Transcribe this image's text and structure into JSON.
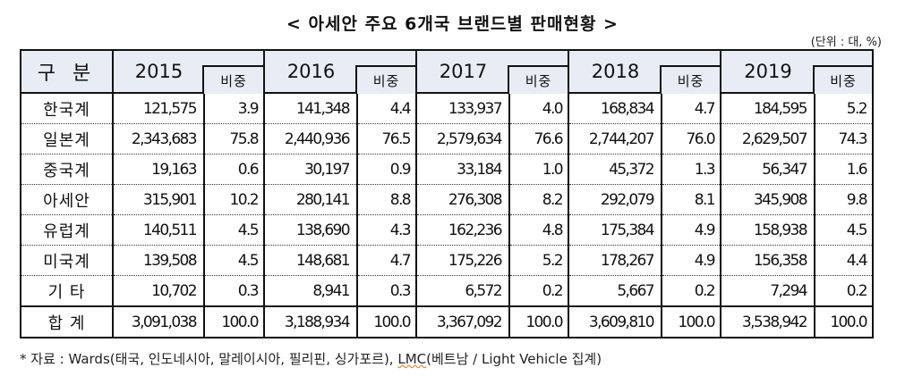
{
  "title": "< 아세안 주요 6개국 브랜드별 판매현황 >",
  "unit": "(단위 : 대, %)",
  "table": {
    "row_header": "구 분",
    "share_label": "비중",
    "years": [
      "2015",
      "2016",
      "2017",
      "2018",
      "2019"
    ],
    "rows": [
      {
        "label": "한국계",
        "values": [
          "121,575",
          "3.9",
          "141,348",
          "4.4",
          "133,937",
          "4.0",
          "168,834",
          "4.7",
          "184,595",
          "5.2"
        ]
      },
      {
        "label": "일본계",
        "values": [
          "2,343,683",
          "75.8",
          "2,440,936",
          "76.5",
          "2,579,634",
          "76.6",
          "2,744,207",
          "76.0",
          "2,629,507",
          "74.3"
        ]
      },
      {
        "label": "중국계",
        "values": [
          "19,163",
          "0.6",
          "30,197",
          "0.9",
          "33,184",
          "1.0",
          "45,372",
          "1.3",
          "56,347",
          "1.6"
        ]
      },
      {
        "label": "아세안",
        "values": [
          "315,901",
          "10.2",
          "280,141",
          "8.8",
          "276,308",
          "8.2",
          "292,079",
          "8.1",
          "345,908",
          "9.8"
        ]
      },
      {
        "label": "유럽계",
        "values": [
          "140,511",
          "4.5",
          "138,690",
          "4.3",
          "162,236",
          "4.8",
          "175,384",
          "4.9",
          "158,938",
          "4.5"
        ]
      },
      {
        "label": "미국계",
        "values": [
          "139,508",
          "4.5",
          "148,681",
          "4.7",
          "175,226",
          "5.2",
          "178,267",
          "4.9",
          "156,358",
          "4.4"
        ]
      },
      {
        "label": "기 타",
        "values": [
          "10,702",
          "0.3",
          "8,941",
          "0.3",
          "6,572",
          "0.2",
          "5,667",
          "0.2",
          "7,294",
          "0.2"
        ]
      },
      {
        "label": "합 계",
        "values": [
          "3,091,038",
          "100.0",
          "3,188,934",
          "100.0",
          "3,367,092",
          "100.0",
          "3,609,810",
          "100.0",
          "3,538,942",
          "100.0"
        ]
      }
    ]
  },
  "footnote": {
    "prefix": "* 자료 : Wards(태국, 인도네시아, 말레이시아, 필리핀, 싱가포르), ",
    "lmc": "LMC",
    "suffix": "(베트남 / Light Vehicle 집계)"
  },
  "colors": {
    "header_bg": "#e8edf5",
    "border": "#111111"
  }
}
